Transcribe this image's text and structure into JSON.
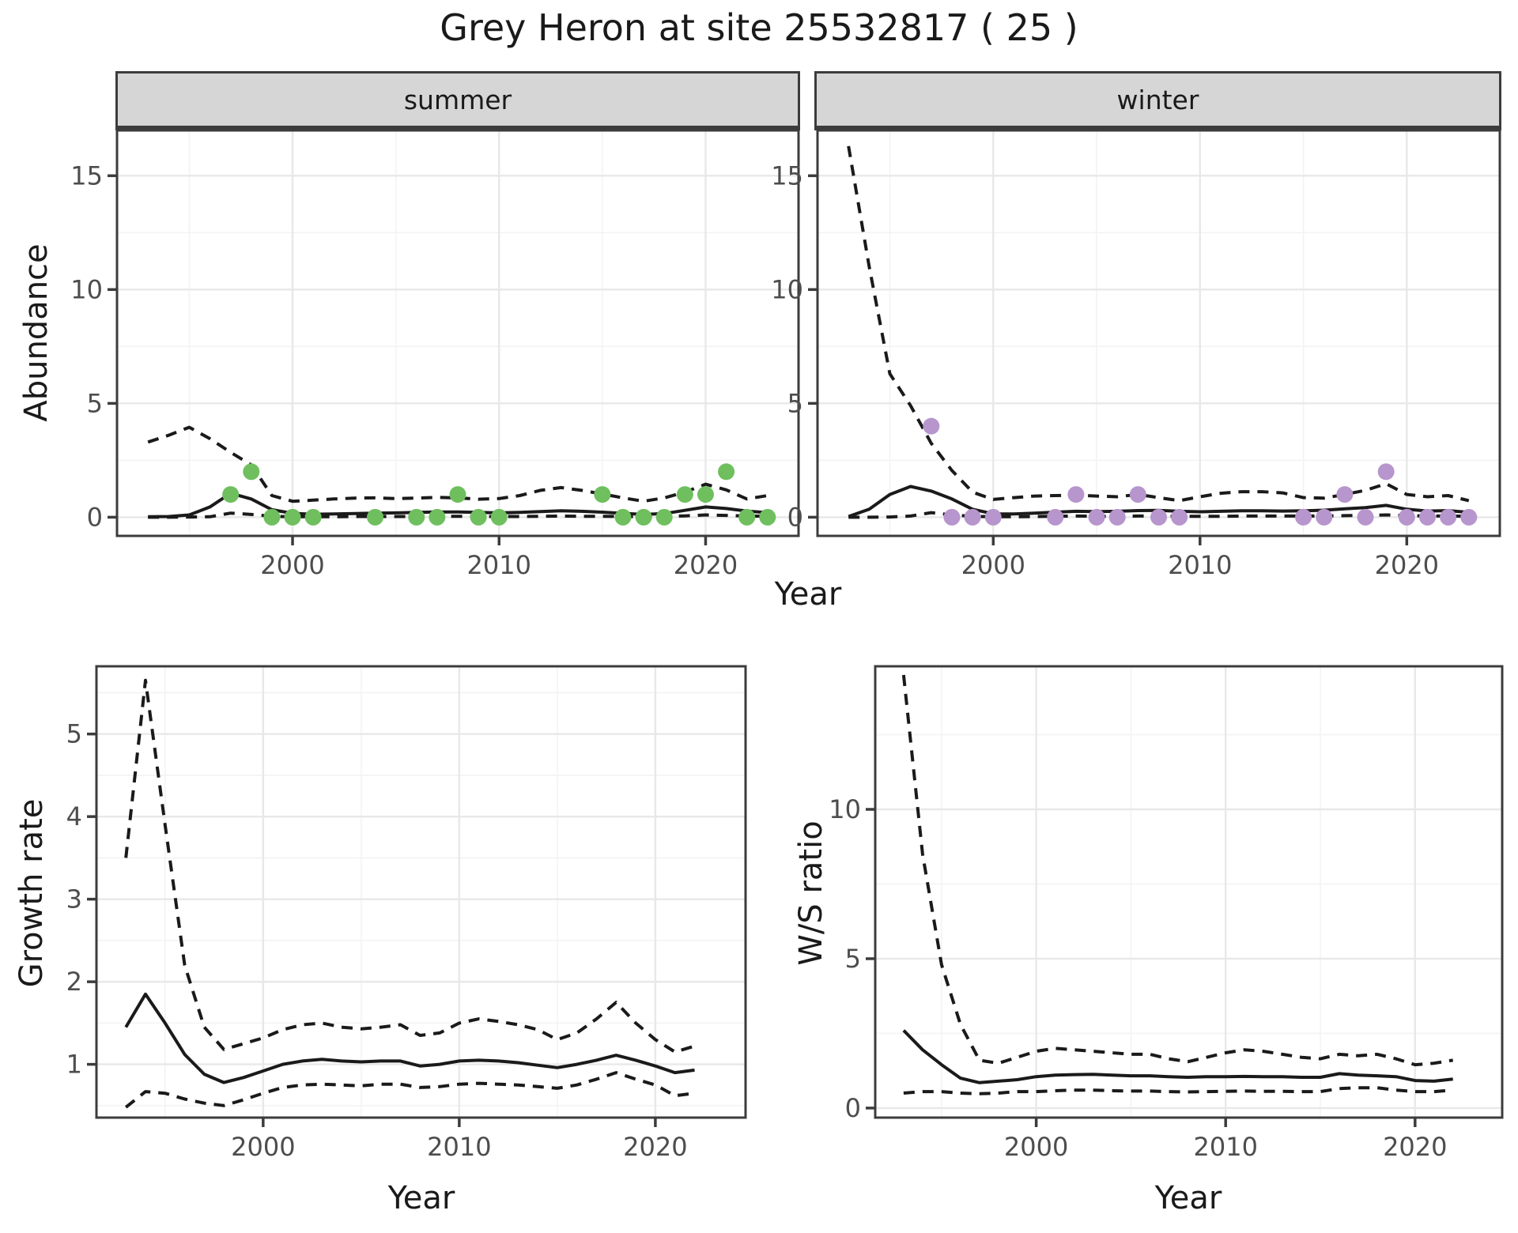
{
  "chart_data": {
    "type": "line",
    "title": "Grey Heron at site 25532817 ( 25 )",
    "colors": {
      "background": "#ffffff",
      "frame": "#3c3c3c",
      "grid_major": "#e8e8e8",
      "grid_minor": "#f3f3f3",
      "line": "#1a1a1a",
      "strip_fill": "#d6d6d6",
      "tick_label": "#4d4d4d",
      "text": "#1a1a1a",
      "summer_point": "#6fbf5f",
      "winter_point": "#b795cd"
    },
    "panels": [
      {
        "key": "abundance_summer",
        "facet_label": "summer",
        "xlabel": "Year",
        "ylabel": "Abundance",
        "x_ticks": [
          2000,
          2010,
          2020
        ],
        "y_ticks": [
          0,
          5,
          10,
          15
        ],
        "x_minor": [
          1995,
          2005,
          2015
        ],
        "y_minor": [
          2.5,
          7.5,
          12.5
        ],
        "x_range": [
          1991.5,
          2024.5
        ],
        "y_range": [
          -0.82,
          16.99
        ],
        "point_color": "#6fbf5f",
        "points": [
          [
            1997,
            1
          ],
          [
            1998,
            2
          ],
          [
            1999,
            0
          ],
          [
            2000,
            0
          ],
          [
            2001,
            0
          ],
          [
            2004,
            0
          ],
          [
            2006,
            0
          ],
          [
            2007,
            0
          ],
          [
            2008,
            1
          ],
          [
            2009,
            0
          ],
          [
            2010,
            0
          ],
          [
            2015,
            1
          ],
          [
            2016,
            0
          ],
          [
            2017,
            0
          ],
          [
            2018,
            0
          ],
          [
            2019,
            1
          ],
          [
            2020,
            1
          ],
          [
            2021,
            2
          ],
          [
            2022,
            0
          ],
          [
            2023,
            0
          ]
        ],
        "years": [
          1993,
          1994,
          1995,
          1996,
          1997,
          1998,
          1999,
          2000,
          2001,
          2002,
          2003,
          2004,
          2005,
          2006,
          2007,
          2008,
          2009,
          2010,
          2011,
          2012,
          2013,
          2014,
          2015,
          2016,
          2017,
          2018,
          2019,
          2020,
          2021,
          2022,
          2023
        ],
        "fit": [
          0.02,
          0.03,
          0.1,
          0.45,
          1.05,
          0.8,
          0.33,
          0.17,
          0.13,
          0.14,
          0.16,
          0.18,
          0.19,
          0.21,
          0.23,
          0.23,
          0.21,
          0.19,
          0.21,
          0.25,
          0.28,
          0.26,
          0.22,
          0.17,
          0.12,
          0.16,
          0.3,
          0.45,
          0.38,
          0.27,
          0.2
        ],
        "upper": [
          3.3,
          3.6,
          3.95,
          3.45,
          2.85,
          2.3,
          0.95,
          0.7,
          0.75,
          0.8,
          0.84,
          0.85,
          0.82,
          0.84,
          0.87,
          0.85,
          0.79,
          0.82,
          0.95,
          1.18,
          1.3,
          1.18,
          1.02,
          0.85,
          0.7,
          0.85,
          1.1,
          1.45,
          1.2,
          0.8,
          0.95
        ],
        "lower": [
          0.0,
          0.0,
          0.01,
          0.02,
          0.18,
          0.12,
          0.04,
          0.02,
          0.02,
          0.02,
          0.03,
          0.03,
          0.03,
          0.03,
          0.04,
          0.04,
          0.03,
          0.03,
          0.03,
          0.04,
          0.05,
          0.04,
          0.04,
          0.03,
          0.02,
          0.03,
          0.06,
          0.1,
          0.08,
          0.05,
          0.04
        ]
      },
      {
        "key": "abundance_winter",
        "facet_label": "winter",
        "xlabel": "Year",
        "ylabel": "Abundance",
        "x_ticks": [
          2000,
          2010,
          2020
        ],
        "y_ticks": [
          0,
          5,
          10,
          15
        ],
        "x_minor": [
          1995,
          2005,
          2015
        ],
        "y_minor": [
          2.5,
          7.5,
          12.5
        ],
        "x_range": [
          1991.5,
          2024.5
        ],
        "y_range": [
          -0.82,
          16.99
        ],
        "point_color": "#b795cd",
        "points": [
          [
            1997,
            4
          ],
          [
            1998,
            0
          ],
          [
            1999,
            0
          ],
          [
            2000,
            0
          ],
          [
            2003,
            0
          ],
          [
            2004,
            1
          ],
          [
            2005,
            0
          ],
          [
            2006,
            0
          ],
          [
            2007,
            1
          ],
          [
            2008,
            0
          ],
          [
            2009,
            0
          ],
          [
            2015,
            0
          ],
          [
            2016,
            0
          ],
          [
            2017,
            1
          ],
          [
            2018,
            0
          ],
          [
            2019,
            2
          ],
          [
            2020,
            0
          ],
          [
            2021,
            0
          ],
          [
            2022,
            0
          ],
          [
            2023,
            0
          ]
        ],
        "years": [
          1993,
          1994,
          1995,
          1996,
          1997,
          1998,
          1999,
          2000,
          2001,
          2002,
          2003,
          2004,
          2005,
          2006,
          2007,
          2008,
          2009,
          2010,
          2011,
          2012,
          2013,
          2014,
          2015,
          2016,
          2017,
          2018,
          2019,
          2020,
          2021,
          2022,
          2023
        ],
        "fit": [
          0.03,
          0.35,
          1.0,
          1.35,
          1.15,
          0.8,
          0.35,
          0.15,
          0.14,
          0.18,
          0.22,
          0.26,
          0.25,
          0.26,
          0.29,
          0.3,
          0.26,
          0.24,
          0.26,
          0.28,
          0.28,
          0.27,
          0.28,
          0.31,
          0.37,
          0.42,
          0.52,
          0.35,
          0.27,
          0.29,
          0.21
        ],
        "upper": [
          16.3,
          11.0,
          6.3,
          4.9,
          3.25,
          2.05,
          1.1,
          0.78,
          0.86,
          0.93,
          0.95,
          0.97,
          0.93,
          0.9,
          1.0,
          0.86,
          0.73,
          0.9,
          1.05,
          1.12,
          1.12,
          1.07,
          0.86,
          0.84,
          1.0,
          1.18,
          1.47,
          1.0,
          0.9,
          0.95,
          0.73
        ],
        "lower": [
          0.0,
          0.0,
          0.01,
          0.05,
          0.2,
          0.1,
          0.04,
          0.02,
          0.02,
          0.03,
          0.04,
          0.05,
          0.04,
          0.04,
          0.05,
          0.05,
          0.04,
          0.04,
          0.04,
          0.05,
          0.05,
          0.05,
          0.05,
          0.05,
          0.07,
          0.08,
          0.1,
          0.07,
          0.05,
          0.05,
          0.04
        ]
      },
      {
        "key": "growth_rate",
        "facet_label": "",
        "xlabel": "Year",
        "ylabel": "Growth rate",
        "x_ticks": [
          2000,
          2010,
          2020
        ],
        "y_ticks": [
          1,
          2,
          3,
          4,
          5
        ],
        "x_minor": [
          1995,
          2005,
          2015
        ],
        "y_minor": [
          0.5,
          1.5,
          2.5,
          3.5,
          4.5,
          5.5
        ],
        "x_range": [
          1991.5,
          2024.6
        ],
        "y_range": [
          0.355,
          5.82
        ],
        "points": [],
        "years": [
          1993,
          1994,
          1995,
          1996,
          1997,
          1998,
          1999,
          2000,
          2001,
          2002,
          2003,
          2004,
          2005,
          2006,
          2007,
          2008,
          2009,
          2010,
          2011,
          2012,
          2013,
          2014,
          2015,
          2016,
          2017,
          2018,
          2019,
          2020,
          2021,
          2022
        ],
        "fit": [
          1.45,
          1.85,
          1.5,
          1.12,
          0.88,
          0.78,
          0.84,
          0.92,
          1.0,
          1.04,
          1.06,
          1.04,
          1.03,
          1.04,
          1.04,
          0.98,
          1.0,
          1.04,
          1.05,
          1.04,
          1.02,
          0.99,
          0.96,
          1.0,
          1.05,
          1.11,
          1.05,
          0.98,
          0.9,
          0.93
        ],
        "upper": [
          3.5,
          5.65,
          3.9,
          2.2,
          1.45,
          1.18,
          1.25,
          1.32,
          1.42,
          1.48,
          1.5,
          1.45,
          1.43,
          1.45,
          1.48,
          1.35,
          1.38,
          1.5,
          1.55,
          1.52,
          1.48,
          1.42,
          1.3,
          1.38,
          1.55,
          1.75,
          1.5,
          1.3,
          1.15,
          1.22
        ],
        "lower": [
          0.48,
          0.67,
          0.65,
          0.58,
          0.53,
          0.5,
          0.57,
          0.65,
          0.72,
          0.75,
          0.76,
          0.75,
          0.74,
          0.76,
          0.76,
          0.72,
          0.73,
          0.76,
          0.77,
          0.76,
          0.75,
          0.73,
          0.71,
          0.75,
          0.82,
          0.9,
          0.82,
          0.75,
          0.62,
          0.65
        ]
      },
      {
        "key": "ws_ratio",
        "facet_label": "",
        "xlabel": "Year",
        "ylabel": "W/S ratio",
        "x_ticks": [
          2000,
          2010,
          2020
        ],
        "y_ticks": [
          0,
          5,
          10
        ],
        "x_minor": [
          1995,
          2005,
          2015
        ],
        "y_minor": [
          2.5,
          7.5,
          12.5
        ],
        "x_range": [
          1991.5,
          2024.6
        ],
        "y_range": [
          -0.32,
          14.79
        ],
        "points": [],
        "years": [
          1993,
          1994,
          1995,
          1996,
          1997,
          1998,
          1999,
          2000,
          2001,
          2002,
          2003,
          2004,
          2005,
          2006,
          2007,
          2008,
          2009,
          2010,
          2011,
          2012,
          2013,
          2014,
          2015,
          2016,
          2017,
          2018,
          2019,
          2020,
          2021,
          2022
        ],
        "fit": [
          2.6,
          1.95,
          1.45,
          1.0,
          0.85,
          0.9,
          0.95,
          1.05,
          1.1,
          1.12,
          1.13,
          1.1,
          1.08,
          1.08,
          1.05,
          1.03,
          1.05,
          1.05,
          1.06,
          1.05,
          1.05,
          1.03,
          1.03,
          1.15,
          1.1,
          1.08,
          1.05,
          0.92,
          0.9,
          0.97
        ],
        "upper": [
          14.5,
          8.5,
          4.8,
          2.8,
          1.6,
          1.5,
          1.7,
          1.9,
          2.0,
          1.95,
          1.9,
          1.85,
          1.8,
          1.8,
          1.65,
          1.55,
          1.7,
          1.85,
          1.95,
          1.9,
          1.8,
          1.7,
          1.65,
          1.8,
          1.75,
          1.8,
          1.65,
          1.45,
          1.5,
          1.6
        ],
        "lower": [
          0.5,
          0.55,
          0.55,
          0.5,
          0.48,
          0.5,
          0.55,
          0.55,
          0.58,
          0.6,
          0.6,
          0.58,
          0.57,
          0.57,
          0.55,
          0.54,
          0.55,
          0.56,
          0.57,
          0.56,
          0.56,
          0.55,
          0.55,
          0.65,
          0.68,
          0.68,
          0.6,
          0.55,
          0.55,
          0.6
        ]
      }
    ],
    "legend": "none",
    "grid": "on"
  }
}
